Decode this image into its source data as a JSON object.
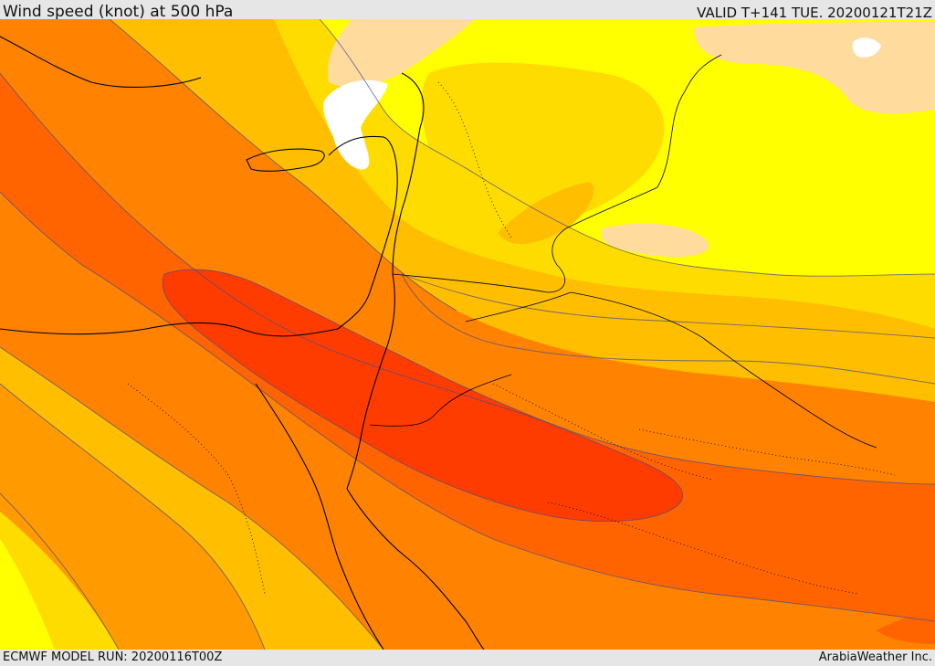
{
  "header": {
    "title": "Wind speed (knot) at 500 hPa",
    "valid": "VALID T+141 TUE. 20200121T21Z"
  },
  "footer": {
    "model_run": "ECMWF MODEL RUN: 20200116T00Z",
    "credit": "ArabiaWeather Inc."
  },
  "map": {
    "variable": "wind speed at 500 hPa",
    "units": "knot",
    "colors": {
      "calm": "#ffffff",
      "band1": "#ffdb9e",
      "band2": "#ffff00",
      "band3": "#ffdc00",
      "band4": "#ffbe00",
      "band5": "#ff9b00",
      "band6": "#ff8200",
      "band7": "#ff6400",
      "band8": "#ff3c00",
      "coastline": "#000000",
      "contour": "#4a4a8a"
    }
  }
}
